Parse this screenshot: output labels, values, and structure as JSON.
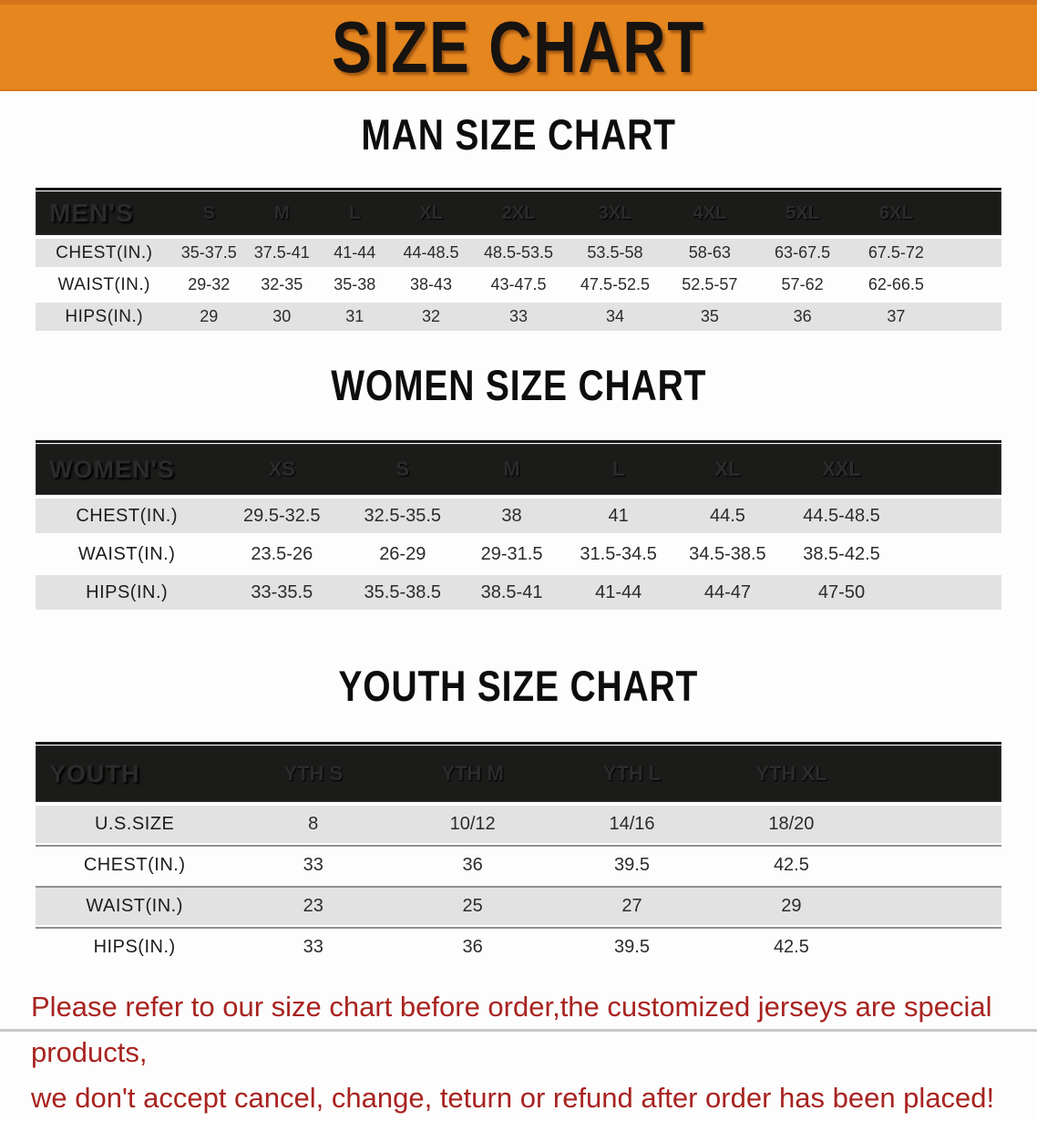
{
  "banner": {
    "title": "SIZE CHART"
  },
  "colors": {
    "banner_bg": "#e5861f",
    "banner_edge": "#d4751b",
    "header_bar_bg": "#1b1b19",
    "row_alt_bg": "#e2e2e2",
    "note_red": "#a8231f",
    "title_black": "#161310"
  },
  "sections": [
    {
      "heading": "MAN SIZE CHART",
      "table": {
        "label": "MEN'S",
        "columns": [
          "S",
          "M",
          "L",
          "XL",
          "2XL",
          "3XL",
          "4XL",
          "5XL",
          "6XL"
        ],
        "rows": [
          {
            "label": "CHEST(IN.)",
            "values": [
              "35-37.5",
              "37.5-41",
              "41-44",
              "44-48.5",
              "48.5-53.5",
              "53.5-58",
              "58-63",
              "63-67.5",
              "67.5-72"
            ]
          },
          {
            "label": "WAIST(IN.)",
            "values": [
              "29-32",
              "32-35",
              "35-38",
              "38-43",
              "43-47.5",
              "47.5-52.5",
              "52.5-57",
              "57-62",
              "62-66.5"
            ]
          },
          {
            "label": "HIPS(IN.)",
            "values": [
              "29",
              "30",
              "31",
              "32",
              "33",
              "34",
              "35",
              "36",
              "37"
            ]
          }
        ]
      }
    },
    {
      "heading": "WOMEN SIZE CHART",
      "table": {
        "label": "WOMEN'S",
        "columns": [
          "XS",
          "S",
          "M",
          "L",
          "XL",
          "XXL"
        ],
        "rows": [
          {
            "label": "CHEST(IN.)",
            "values": [
              "29.5-32.5",
              "32.5-35.5",
              "38",
              "41",
              "44.5",
              "44.5-48.5"
            ]
          },
          {
            "label": "WAIST(IN.)",
            "values": [
              "23.5-26",
              "26-29",
              "29-31.5",
              "31.5-34.5",
              "34.5-38.5",
              "38.5-42.5"
            ]
          },
          {
            "label": "HIPS(IN.)",
            "values": [
              "33-35.5",
              "35.5-38.5",
              "38.5-41",
              "41-44",
              "44-47",
              "47-50"
            ]
          }
        ]
      }
    },
    {
      "heading": "YOUTH SIZE CHART",
      "table": {
        "label": "YOUTH",
        "columns": [
          "YTH S",
          "YTH M",
          "YTH L",
          "YTH XL"
        ],
        "rows": [
          {
            "label": "U.S.SIZE",
            "values": [
              "8",
              "10/12",
              "14/16",
              "18/20"
            ]
          },
          {
            "label": "CHEST(IN.)",
            "values": [
              "33",
              "36",
              "39.5",
              "42.5"
            ]
          },
          {
            "label": "WAIST(IN.)",
            "values": [
              "23",
              "25",
              "27",
              "29"
            ]
          },
          {
            "label": "HIPS(IN.)",
            "values": [
              "33",
              "36",
              "39.5",
              "42.5"
            ]
          }
        ]
      }
    }
  ],
  "note": {
    "line1": "Please refer to our size chart before order,the customized jerseys are special products,",
    "line2": "we don't accept cancel, change, teturn or refund after order has been placed!"
  }
}
